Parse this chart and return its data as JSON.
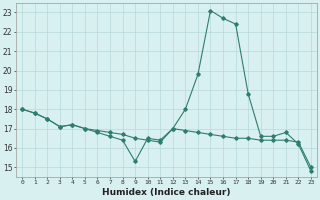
{
  "xlabel": "Humidex (Indice chaleur)",
  "x_values": [
    0,
    1,
    2,
    3,
    4,
    5,
    6,
    7,
    8,
    9,
    10,
    11,
    12,
    13,
    14,
    15,
    16,
    17,
    18,
    19,
    20,
    21,
    22,
    23
  ],
  "line1_y": [
    18,
    17.8,
    17.5,
    17.1,
    17.2,
    17.0,
    16.8,
    16.6,
    16.4,
    15.3,
    16.5,
    16.4,
    17.0,
    18.0,
    19.8,
    23.1,
    22.7,
    22.4,
    18.8,
    16.6,
    16.6,
    16.8,
    16.2,
    14.8
  ],
  "line2_y": [
    18,
    17.8,
    17.5,
    17.1,
    17.2,
    17.0,
    16.9,
    16.8,
    16.7,
    16.5,
    16.4,
    16.3,
    17.0,
    16.9,
    16.8,
    16.7,
    16.6,
    16.5,
    16.5,
    16.4,
    16.4,
    16.4,
    16.3,
    15.0
  ],
  "line_color": "#2E7D6E",
  "bg_color": "#d8f0f0",
  "grid_color": "#b8d8d8",
  "ylim": [
    14.5,
    23.5
  ],
  "xlim": [
    -0.5,
    23.5
  ],
  "yticks": [
    15,
    16,
    17,
    18,
    19,
    20,
    21,
    22,
    23
  ],
  "xticks": [
    0,
    1,
    2,
    3,
    4,
    5,
    6,
    7,
    8,
    9,
    10,
    11,
    12,
    13,
    14,
    15,
    16,
    17,
    18,
    19,
    20,
    21,
    22,
    23
  ]
}
